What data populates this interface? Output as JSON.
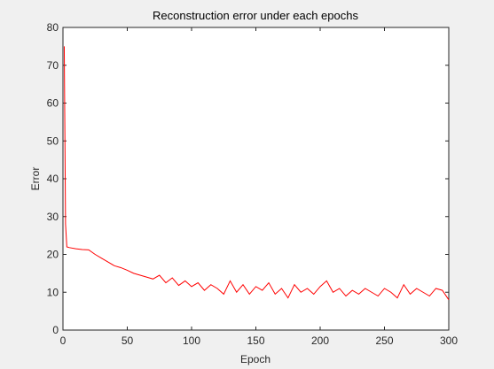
{
  "chart_data": {
    "type": "line",
    "title": "Reconstruction error under each epochs",
    "x_label": "Epoch",
    "y_label": "Error",
    "x": [
      1,
      2,
      3,
      5,
      10,
      15,
      20,
      25,
      30,
      35,
      40,
      45,
      50,
      55,
      60,
      65,
      70,
      75,
      80,
      85,
      90,
      95,
      100,
      105,
      110,
      115,
      120,
      125,
      130,
      135,
      140,
      145,
      150,
      155,
      160,
      165,
      170,
      175,
      180,
      185,
      190,
      195,
      200,
      205,
      210,
      215,
      220,
      225,
      230,
      235,
      240,
      245,
      250,
      255,
      260,
      265,
      270,
      275,
      280,
      285,
      290,
      295,
      300
    ],
    "series": [
      {
        "name": "Error",
        "color": "#ff0000",
        "values": [
          75,
          28,
          22,
          21.8,
          21.5,
          21.3,
          21.2,
          20,
          19,
          18,
          17,
          16.5,
          15.8,
          15,
          14.5,
          14,
          13.5,
          14.5,
          12.5,
          13.8,
          11.8,
          13,
          11.5,
          12.5,
          10.5,
          12,
          11,
          9.5,
          13,
          10,
          12,
          9.5,
          11.5,
          10.5,
          12.5,
          9.5,
          11,
          8.5,
          12,
          10,
          11,
          9.5,
          11.5,
          13,
          10,
          11,
          9,
          10.5,
          9.5,
          11,
          10,
          9,
          11,
          10,
          8.5,
          12,
          9.5,
          11,
          10,
          9,
          11,
          10.5,
          8
        ]
      }
    ],
    "xlim": [
      0,
      300
    ],
    "ylim": [
      0,
      80
    ],
    "xticks": [
      0,
      50,
      100,
      150,
      200,
      250,
      300
    ],
    "yticks": [
      0,
      10,
      20,
      30,
      40,
      50,
      60,
      70,
      80
    ]
  }
}
